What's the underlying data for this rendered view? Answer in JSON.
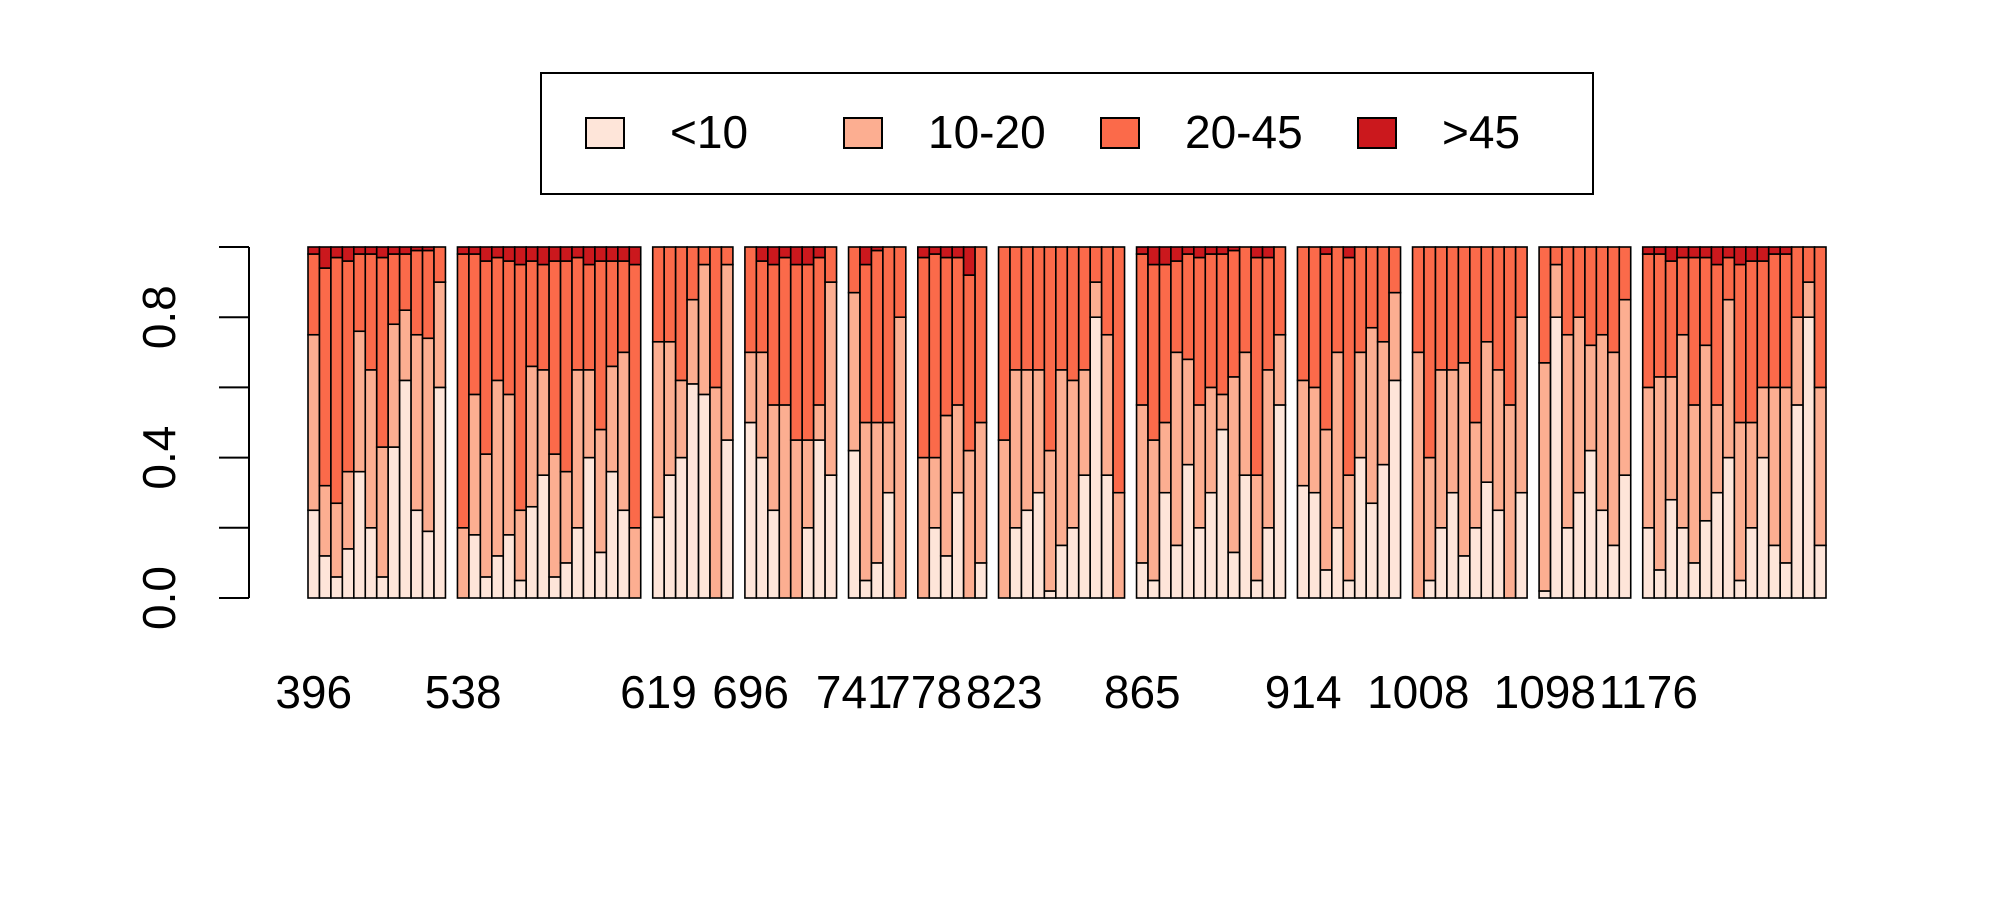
{
  "chart_data": {
    "type": "bar",
    "stacked": true,
    "normalized": true,
    "ylim": [
      0,
      1
    ],
    "y_ticks": [
      "0.0",
      "0.4",
      "0.8"
    ],
    "x_tick_labels": [
      "396",
      "538",
      "619",
      "696",
      "741",
      "778",
      "823",
      "865",
      "914",
      "1008",
      "1098",
      "1176"
    ],
    "legend": {
      "placement": "top-center",
      "entries": [
        {
          "label": "<10",
          "color": "#FEE5D9"
        },
        {
          "label": "10-20",
          "color": "#FCAE91"
        },
        {
          "label": "20-45",
          "color": "#FB6A4A"
        },
        {
          "label": ">45",
          "color": "#CB181D"
        }
      ]
    },
    "series": [
      {
        "name": "<10",
        "color": "#FEE5D9"
      },
      {
        "name": "10-20",
        "color": "#FCAE91"
      },
      {
        "name": "20-45",
        "color": "#FB6A4A"
      },
      {
        "name": ">45",
        "color": "#CB181D"
      }
    ],
    "bar_groups": [
      {
        "tick": "396",
        "values": [
          [
            0.25,
            0.5,
            0.23,
            0.02
          ],
          [
            0.12,
            0.2,
            0.62,
            0.06
          ],
          [
            0.06,
            0.21,
            0.7,
            0.03
          ],
          [
            0.14,
            0.22,
            0.6,
            0.04
          ],
          [
            0.36,
            0.4,
            0.22,
            0.02
          ],
          [
            0.2,
            0.45,
            0.33,
            0.02
          ],
          [
            0.06,
            0.37,
            0.54,
            0.03
          ],
          [
            0.43,
            0.35,
            0.2,
            0.02
          ],
          [
            0.62,
            0.2,
            0.16,
            0.02
          ],
          [
            0.25,
            0.5,
            0.24,
            0.01
          ],
          [
            0.19,
            0.55,
            0.25,
            0.01
          ],
          [
            0.6,
            0.3,
            0.1,
            0.0
          ]
        ]
      },
      {
        "tick": "538",
        "values": [
          [
            0.0,
            0.2,
            0.78,
            0.02
          ],
          [
            0.18,
            0.4,
            0.4,
            0.02
          ],
          [
            0.06,
            0.35,
            0.55,
            0.04
          ],
          [
            0.12,
            0.5,
            0.35,
            0.03
          ],
          [
            0.18,
            0.4,
            0.38,
            0.04
          ],
          [
            0.05,
            0.2,
            0.7,
            0.05
          ],
          [
            0.26,
            0.4,
            0.3,
            0.04
          ],
          [
            0.35,
            0.3,
            0.3,
            0.05
          ],
          [
            0.06,
            0.35,
            0.55,
            0.04
          ],
          [
            0.1,
            0.26,
            0.6,
            0.04
          ],
          [
            0.2,
            0.45,
            0.32,
            0.03
          ],
          [
            0.4,
            0.25,
            0.3,
            0.05
          ],
          [
            0.13,
            0.35,
            0.48,
            0.04
          ],
          [
            0.36,
            0.3,
            0.3,
            0.04
          ],
          [
            0.25,
            0.45,
            0.26,
            0.04
          ],
          [
            0.0,
            0.2,
            0.75,
            0.05
          ]
        ]
      },
      {
        "tick": "619",
        "values": [
          [
            0.23,
            0.5,
            0.27,
            0.0
          ],
          [
            0.35,
            0.38,
            0.27,
            0.0
          ],
          [
            0.4,
            0.22,
            0.38,
            0.0
          ],
          [
            0.61,
            0.24,
            0.15,
            0.0
          ],
          [
            0.58,
            0.37,
            0.05,
            0.0
          ],
          [
            0.0,
            0.6,
            0.4,
            0.0
          ],
          [
            0.45,
            0.5,
            0.05,
            0.0
          ]
        ]
      },
      {
        "tick": "696",
        "values": [
          [
            0.5,
            0.2,
            0.3,
            0.0
          ],
          [
            0.4,
            0.3,
            0.26,
            0.04
          ],
          [
            0.25,
            0.3,
            0.4,
            0.05
          ],
          [
            0.0,
            0.55,
            0.42,
            0.03
          ],
          [
            0.0,
            0.45,
            0.5,
            0.05
          ],
          [
            0.2,
            0.25,
            0.5,
            0.05
          ],
          [
            0.45,
            0.1,
            0.42,
            0.03
          ],
          [
            0.35,
            0.55,
            0.1,
            0.0
          ]
        ]
      },
      {
        "tick": "741",
        "values": [
          [
            0.42,
            0.45,
            0.13,
            0.0
          ],
          [
            0.05,
            0.45,
            0.45,
            0.05
          ],
          [
            0.1,
            0.4,
            0.49,
            0.01
          ],
          [
            0.3,
            0.2,
            0.5,
            0.0
          ],
          [
            0.0,
            0.8,
            0.2,
            0.0
          ]
        ]
      },
      {
        "tick": "778",
        "values": [
          [
            0.0,
            0.4,
            0.57,
            0.03
          ],
          [
            0.2,
            0.2,
            0.58,
            0.02
          ],
          [
            0.12,
            0.4,
            0.45,
            0.03
          ],
          [
            0.3,
            0.25,
            0.42,
            0.03
          ],
          [
            0.0,
            0.42,
            0.5,
            0.08
          ],
          [
            0.1,
            0.4,
            0.5,
            0.0
          ]
        ]
      },
      {
        "tick": "823",
        "values": [
          [
            0.0,
            0.45,
            0.55,
            0.0
          ],
          [
            0.2,
            0.45,
            0.35,
            0.0
          ],
          [
            0.25,
            0.4,
            0.35,
            0.0
          ],
          [
            0.3,
            0.35,
            0.35,
            0.0
          ],
          [
            0.02,
            0.4,
            0.58,
            0.0
          ],
          [
            0.15,
            0.5,
            0.35,
            0.0
          ],
          [
            0.2,
            0.42,
            0.38,
            0.0
          ],
          [
            0.35,
            0.3,
            0.35,
            0.0
          ],
          [
            0.8,
            0.1,
            0.1,
            0.0
          ],
          [
            0.35,
            0.4,
            0.25,
            0.0
          ],
          [
            0.0,
            0.3,
            0.7,
            0.0
          ]
        ]
      },
      {
        "tick": "865",
        "values": [
          [
            0.1,
            0.45,
            0.43,
            0.02
          ],
          [
            0.05,
            0.4,
            0.5,
            0.05
          ],
          [
            0.3,
            0.2,
            0.45,
            0.05
          ],
          [
            0.15,
            0.55,
            0.26,
            0.04
          ],
          [
            0.38,
            0.3,
            0.3,
            0.02
          ],
          [
            0.2,
            0.35,
            0.42,
            0.03
          ],
          [
            0.3,
            0.3,
            0.38,
            0.02
          ],
          [
            0.48,
            0.1,
            0.4,
            0.02
          ],
          [
            0.13,
            0.5,
            0.36,
            0.01
          ],
          [
            0.35,
            0.35,
            0.3,
            0.0
          ],
          [
            0.05,
            0.3,
            0.62,
            0.03
          ],
          [
            0.2,
            0.45,
            0.32,
            0.03
          ],
          [
            0.55,
            0.2,
            0.25,
            0.0
          ]
        ]
      },
      {
        "tick": "914",
        "values": [
          [
            0.32,
            0.3,
            0.38,
            0.0
          ],
          [
            0.3,
            0.3,
            0.4,
            0.0
          ],
          [
            0.08,
            0.4,
            0.5,
            0.02
          ],
          [
            0.2,
            0.5,
            0.3,
            0.0
          ],
          [
            0.05,
            0.3,
            0.62,
            0.03
          ],
          [
            0.4,
            0.3,
            0.3,
            0.0
          ],
          [
            0.27,
            0.5,
            0.23,
            0.0
          ],
          [
            0.38,
            0.35,
            0.27,
            0.0
          ],
          [
            0.62,
            0.25,
            0.13,
            0.0
          ]
        ]
      },
      {
        "tick": "1008",
        "values": [
          [
            0.0,
            0.7,
            0.3,
            0.0
          ],
          [
            0.05,
            0.35,
            0.6,
            0.0
          ],
          [
            0.2,
            0.45,
            0.35,
            0.0
          ],
          [
            0.3,
            0.35,
            0.35,
            0.0
          ],
          [
            0.12,
            0.55,
            0.33,
            0.0
          ],
          [
            0.2,
            0.3,
            0.5,
            0.0
          ],
          [
            0.33,
            0.4,
            0.27,
            0.0
          ],
          [
            0.25,
            0.4,
            0.35,
            0.0
          ],
          [
            0.0,
            0.55,
            0.45,
            0.0
          ],
          [
            0.3,
            0.5,
            0.2,
            0.0
          ]
        ]
      },
      {
        "tick": "1098",
        "values": [
          [
            0.02,
            0.65,
            0.33,
            0.0
          ],
          [
            0.8,
            0.15,
            0.05,
            0.0
          ],
          [
            0.2,
            0.55,
            0.25,
            0.0
          ],
          [
            0.3,
            0.5,
            0.2,
            0.0
          ],
          [
            0.42,
            0.3,
            0.28,
            0.0
          ],
          [
            0.25,
            0.5,
            0.25,
            0.0
          ],
          [
            0.15,
            0.55,
            0.3,
            0.0
          ],
          [
            0.35,
            0.5,
            0.15,
            0.0
          ]
        ]
      },
      {
        "tick": "1176",
        "values": [
          [
            0.2,
            0.4,
            0.38,
            0.02
          ],
          [
            0.08,
            0.55,
            0.35,
            0.02
          ],
          [
            0.28,
            0.35,
            0.33,
            0.04
          ],
          [
            0.2,
            0.55,
            0.22,
            0.03
          ],
          [
            0.1,
            0.45,
            0.42,
            0.03
          ],
          [
            0.22,
            0.5,
            0.25,
            0.03
          ],
          [
            0.3,
            0.25,
            0.4,
            0.05
          ],
          [
            0.4,
            0.45,
            0.12,
            0.03
          ],
          [
            0.05,
            0.45,
            0.45,
            0.05
          ],
          [
            0.2,
            0.3,
            0.46,
            0.04
          ],
          [
            0.4,
            0.2,
            0.36,
            0.04
          ],
          [
            0.15,
            0.45,
            0.38,
            0.02
          ],
          [
            0.1,
            0.5,
            0.38,
            0.02
          ],
          [
            0.55,
            0.25,
            0.2,
            0.0
          ],
          [
            0.8,
            0.1,
            0.1,
            0.0
          ],
          [
            0.15,
            0.45,
            0.4,
            0.0
          ]
        ]
      }
    ]
  }
}
